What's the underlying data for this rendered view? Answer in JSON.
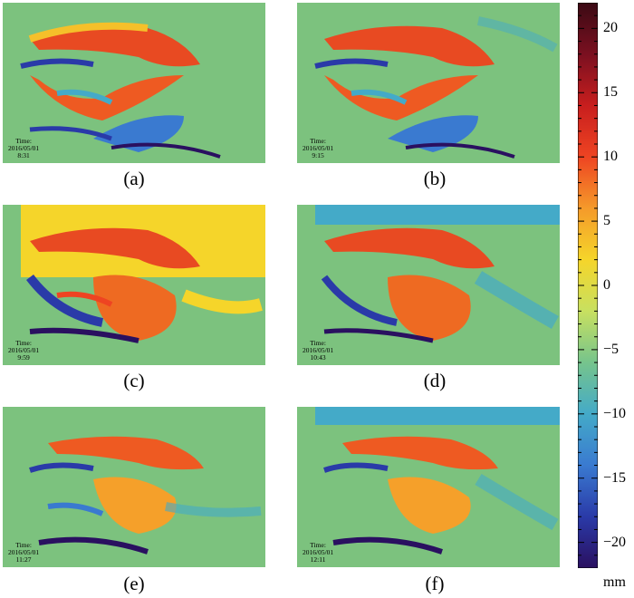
{
  "panels": [
    {
      "caption": "(a)",
      "time_label": "Time:",
      "date": "2016/05/01",
      "clock": "8:31"
    },
    {
      "caption": "(b)",
      "time_label": "Time:",
      "date": "2016/05/01",
      "clock": "9:15"
    },
    {
      "caption": "(c)",
      "time_label": "Time:",
      "date": "2016/05/01",
      "clock": "9:59"
    },
    {
      "caption": "(d)",
      "time_label": "Time:",
      "date": "2016/05/01",
      "clock": "10:43"
    },
    {
      "caption": "(e)",
      "time_label": "Time:",
      "date": "2016/05/01",
      "clock": "11:27"
    },
    {
      "caption": "(f)",
      "time_label": "Time:",
      "date": "2016/05/01",
      "clock": "12:11"
    }
  ],
  "colorbar": {
    "min": -22,
    "max": 22,
    "ticks": [
      20,
      15,
      10,
      5,
      0,
      -5,
      -10,
      -15,
      -20
    ],
    "tick_labels": [
      "20",
      "15",
      "10",
      "5",
      "0",
      "−5",
      "−10",
      "−15",
      "−20"
    ],
    "unit": "mm",
    "colormap": [
      "#3b0a14",
      "#7a1020",
      "#c81e1e",
      "#ee4422",
      "#f59a2a",
      "#f5d52a",
      "#c8e060",
      "#76c48c",
      "#44aac8",
      "#3a7ad0",
      "#2a3aa8",
      "#2a1060"
    ]
  },
  "background_color": "#7cc27e"
}
